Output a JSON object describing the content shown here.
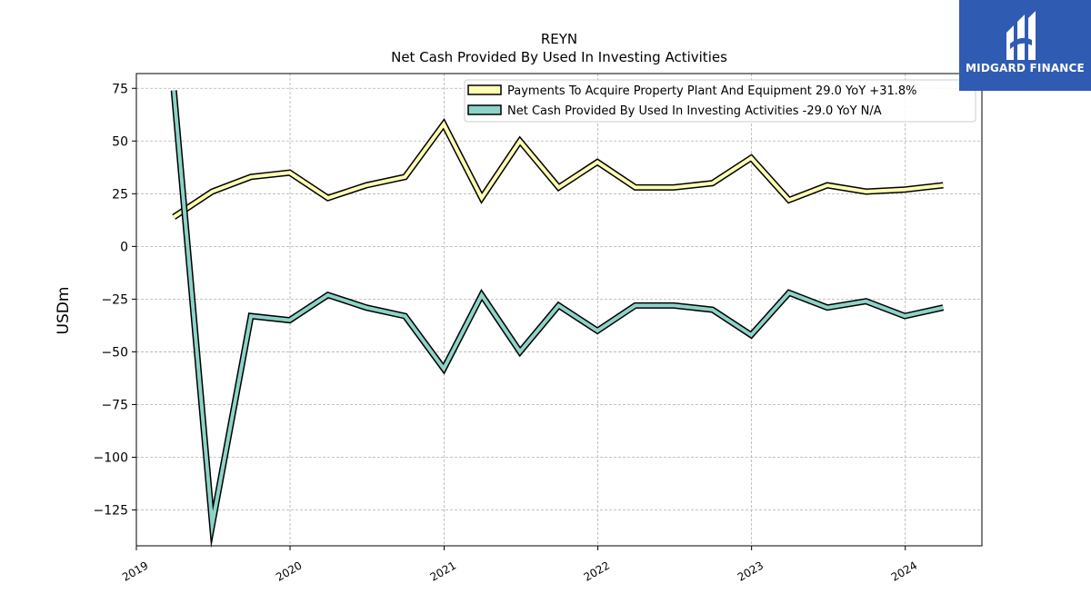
{
  "chart_data": {
    "type": "line",
    "title": "REYN",
    "subtitle": "Net Cash Provided By Used In Investing Activities",
    "ylabel": "USDm",
    "xlabel": "",
    "ylim": [
      -142,
      82
    ],
    "xlim": [
      "2019-01-01",
      "2024-07-01"
    ],
    "yticks": [
      75,
      50,
      25,
      0,
      -25,
      -50,
      -75,
      -100,
      -125
    ],
    "ytick_labels": [
      "75",
      "50",
      "25",
      "0",
      "−25",
      "−50",
      "−75",
      "−100",
      "−125"
    ],
    "xticks": [
      "2019-01-01",
      "2020-01-01",
      "2021-01-01",
      "2022-01-01",
      "2023-01-01",
      "2024-01-01"
    ],
    "xtick_labels": [
      "2019",
      "2020",
      "2021",
      "2022",
      "2023",
      "2024"
    ],
    "grid": true,
    "legend_position": "top-right",
    "series": [
      {
        "name": "Payments To Acquire Property Plant And Equipment  29.0 YoY +31.8%",
        "color": "#ffffb3",
        "x": [
          "2019-03-31",
          "2019-06-30",
          "2019-09-30",
          "2019-12-31",
          "2020-03-31",
          "2020-06-30",
          "2020-09-30",
          "2020-12-31",
          "2021-03-31",
          "2021-06-30",
          "2021-09-30",
          "2021-12-31",
          "2022-03-31",
          "2022-06-30",
          "2022-09-30",
          "2022-12-31",
          "2023-03-31",
          "2023-06-30",
          "2023-09-30",
          "2023-12-31",
          "2024-03-31"
        ],
        "values": [
          14,
          26,
          33,
          35,
          23,
          29,
          33,
          58,
          23,
          50,
          28,
          40,
          28,
          28,
          30,
          42,
          22,
          29,
          26,
          27,
          29
        ]
      },
      {
        "name": "Net Cash Provided By Used In Investing Activities  -29.0 YoY N/A",
        "color": "#8dd3c7",
        "x": [
          "2019-03-31",
          "2019-06-30",
          "2019-09-30",
          "2019-12-31",
          "2020-03-31",
          "2020-06-30",
          "2020-09-30",
          "2020-12-31",
          "2021-03-31",
          "2021-06-30",
          "2021-09-30",
          "2021-12-31",
          "2022-03-31",
          "2022-06-30",
          "2022-09-30",
          "2022-12-31",
          "2023-03-31",
          "2023-06-30",
          "2023-09-30",
          "2023-12-31",
          "2024-03-31"
        ],
        "values": [
          74,
          -132,
          -33,
          -35,
          -23,
          -29,
          -33,
          -58,
          -23,
          -50,
          -28,
          -40,
          -28,
          -28,
          -30,
          -42,
          -22,
          -29,
          -26,
          -33,
          -29
        ]
      }
    ]
  },
  "logo": {
    "text": "MIDGARD FINANCE"
  }
}
